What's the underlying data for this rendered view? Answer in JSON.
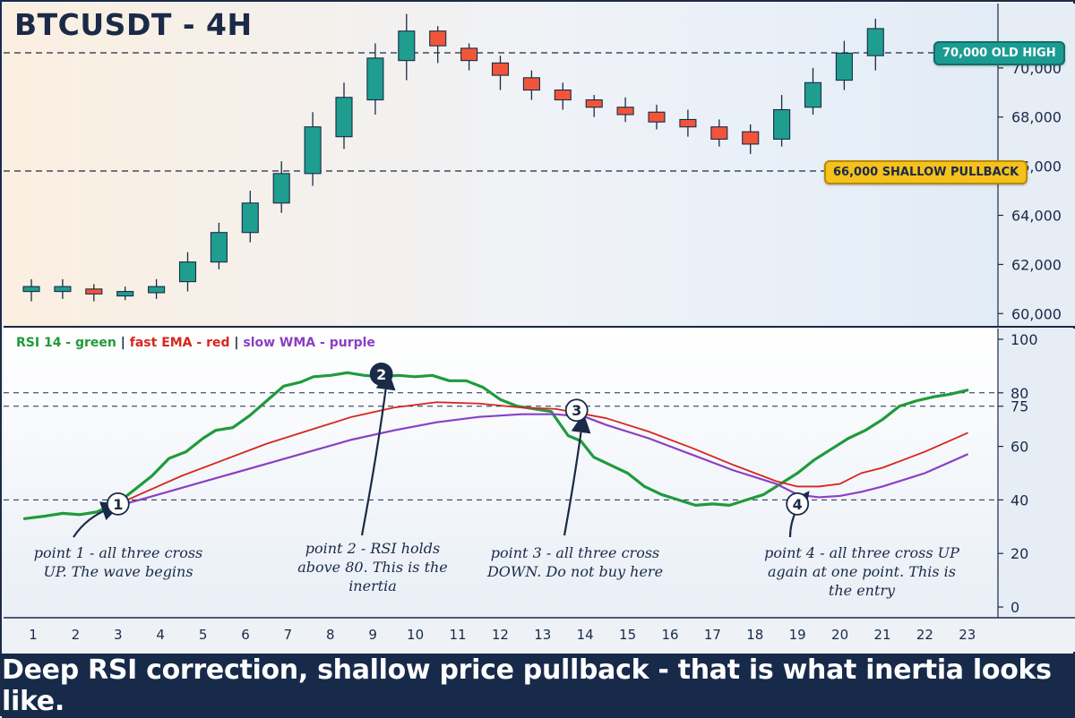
{
  "title": "BTCUSDT - 4H",
  "banner": "Deep RSI correction, shallow price pullback - that is what inertia looks like.",
  "colors": {
    "bull": "#1f9e8f",
    "bear": "#f0553a",
    "rsi": "#1f9b3c",
    "ema": "#d7261e",
    "wma": "#8b3fc4",
    "high_badge": "#1b9c92",
    "pullback_badge": "#f6c11c",
    "banner_bg": "#172a4a"
  },
  "legend": {
    "rsi": "RSI 14 - green",
    "sep1": "|",
    "ema": "fast EMA - red",
    "sep2": "|",
    "wma": "slow WMA - purple"
  },
  "levels": {
    "high_label": "70,000 OLD HIGH",
    "pullback_label": "66,000 SHALLOW PULLBACK"
  },
  "notes": [
    {
      "marker": "1",
      "text": "point 1 - all three cross UP. The wave begins"
    },
    {
      "marker": "2",
      "text": "point 2 - RSI holds above 80. This is the inertia"
    },
    {
      "marker": "3",
      "text": "point 3 - all three cross DOWN. Do not buy here"
    },
    {
      "marker": "4",
      "text": "point 4 - all three cross UP again at one point. This is the entry"
    }
  ],
  "chart_data": [
    {
      "type": "candlestick",
      "title": "BTCUSDT - 4H",
      "ylim": [
        59500,
        72400
      ],
      "y_ticks": [
        60000,
        62000,
        64000,
        66000,
        68000,
        70000
      ],
      "y_tick_labels": [
        "60,000",
        "62,000",
        "64,000",
        "66,000",
        "68,000",
        "70,000"
      ],
      "reference_lines": [
        70200,
        66400
      ],
      "candles": [
        {
          "x": 1,
          "open": 60900,
          "close": 61100,
          "high": 61400,
          "low": 60500
        },
        {
          "x": 2,
          "open": 60900,
          "close": 61100,
          "high": 61400,
          "low": 60600
        },
        {
          "x": 3,
          "open": 61000,
          "close": 60800,
          "high": 61200,
          "low": 60500
        },
        {
          "x": 4,
          "open": 60750,
          "close": 60900,
          "high": 61100,
          "low": 60550
        },
        {
          "x": 5,
          "open": 60850,
          "close": 61100,
          "high": 61400,
          "low": 60600
        },
        {
          "x": 6,
          "open": 61300,
          "close": 62100,
          "high": 62500,
          "low": 60900
        },
        {
          "x": 7,
          "open": 62100,
          "close": 63300,
          "high": 63700,
          "low": 61800
        },
        {
          "x": 8,
          "open": 63300,
          "close": 64500,
          "high": 65000,
          "low": 62900
        },
        {
          "x": 9,
          "open": 64500,
          "close": 65700,
          "high": 66200,
          "low": 64100
        },
        {
          "x": 10,
          "open": 65700,
          "close": 67600,
          "high": 68200,
          "low": 65200
        },
        {
          "x": 11,
          "open": 67200,
          "close": 68800,
          "high": 69400,
          "low": 66700
        },
        {
          "x": 12,
          "open": 68700,
          "close": 70400,
          "high": 71000,
          "low": 68100
        },
        {
          "x": 13,
          "open": 70300,
          "close": 71500,
          "high": 72200,
          "low": 69500
        },
        {
          "x": 14,
          "open": 71500,
          "close": 70900,
          "high": 71700,
          "low": 70200
        },
        {
          "x": 15,
          "open": 70800,
          "close": 70300,
          "high": 71000,
          "low": 69900
        },
        {
          "x": 16,
          "open": 70200,
          "close": 69700,
          "high": 70500,
          "low": 69100
        },
        {
          "x": 17,
          "open": 69600,
          "close": 69100,
          "high": 69900,
          "low": 68700
        },
        {
          "x": 18,
          "open": 69100,
          "close": 68700,
          "high": 69400,
          "low": 68300
        },
        {
          "x": 19,
          "open": 68700,
          "close": 68400,
          "high": 68900,
          "low": 68000
        },
        {
          "x": 20,
          "open": 68400,
          "close": 68100,
          "high": 68800,
          "low": 67800
        },
        {
          "x": 21,
          "open": 68200,
          "close": 67800,
          "high": 68500,
          "low": 67500
        },
        {
          "x": 22,
          "open": 67900,
          "close": 67600,
          "high": 68300,
          "low": 67200
        },
        {
          "x": 23,
          "open": 67600,
          "close": 67100,
          "high": 67900,
          "low": 66800
        },
        {
          "x": 24,
          "open": 67400,
          "close": 66900,
          "high": 67700,
          "low": 66500
        },
        {
          "x": 25,
          "open": 67100,
          "close": 68300,
          "high": 68900,
          "low": 66800
        },
        {
          "x": 26,
          "open": 68400,
          "close": 69400,
          "high": 70000,
          "low": 68100
        },
        {
          "x": 27,
          "open": 69500,
          "close": 70600,
          "high": 71100,
          "low": 69100
        },
        {
          "x": 28,
          "open": 70500,
          "close": 71600,
          "high": 72000,
          "low": 69900
        }
      ]
    },
    {
      "type": "line",
      "title": "",
      "xlim": [
        0.8,
        24
      ],
      "ylim": [
        -4,
        104
      ],
      "x_ticks": [
        1,
        2,
        3,
        4,
        5,
        6,
        7,
        8,
        9,
        10,
        11,
        12,
        13,
        14,
        15,
        16,
        17,
        18,
        19,
        20,
        21,
        22,
        23
      ],
      "y_ticks": [
        0,
        20,
        40,
        60,
        75,
        80,
        100
      ],
      "y_tick_labels": [
        "0",
        "20",
        "40",
        "60",
        "75",
        "80",
        "100"
      ],
      "reference_lines": [
        40,
        75,
        80
      ],
      "series": [
        {
          "name": "RSI 14",
          "x": [
            0.8,
            1.3,
            1.7,
            2.1,
            2.5,
            3.0,
            3.4,
            3.8,
            4.2,
            4.6,
            5.0,
            5.3,
            5.7,
            6.1,
            6.5,
            6.9,
            7.3,
            7.6,
            8.0,
            8.4,
            8.8,
            9.2,
            9.6,
            10.0,
            10.4,
            10.8,
            11.2,
            11.6,
            12.0,
            12.4,
            12.8,
            13.2,
            13.6,
            13.9,
            14.2,
            14.6,
            15.0,
            15.4,
            15.8,
            16.2,
            16.6,
            17.0,
            17.4,
            17.8,
            18.2,
            18.6,
            19.0,
            19.4,
            19.8,
            20.2,
            20.6,
            21.0,
            21.4,
            21.8,
            22.2,
            22.6,
            23.0
          ],
          "values": [
            33,
            34,
            35,
            34.5,
            35.5,
            39,
            44,
            49,
            55.5,
            58,
            63,
            66,
            67,
            71.5,
            77,
            82.5,
            84,
            86,
            86.5,
            87.5,
            86.5,
            86,
            86.5,
            86,
            86.5,
            84.5,
            84.5,
            82,
            77.5,
            75,
            74,
            73,
            64,
            62,
            56,
            53,
            50,
            45,
            42,
            40,
            38,
            38.5,
            38,
            40,
            42,
            46,
            50,
            55,
            59,
            63,
            66,
            70,
            75,
            77,
            78.5,
            79.5,
            81
          ]
        },
        {
          "name": "fast EMA",
          "x": [
            2.8,
            3.5,
            4.5,
            5.5,
            6.5,
            7.5,
            8.5,
            9.5,
            10.5,
            11.5,
            12.5,
            13.3,
            14.0,
            14.5,
            15.5,
            16.5,
            17.5,
            18.5,
            19.0,
            19.5,
            20.0,
            20.5,
            21.0,
            22.0,
            23.0
          ],
          "values": [
            37,
            42,
            49,
            55,
            61,
            66,
            71,
            74.5,
            76.5,
            76,
            74.5,
            74,
            72,
            70.5,
            65.5,
            59.5,
            53,
            47,
            45,
            45,
            46,
            50,
            52,
            58,
            65
          ]
        },
        {
          "name": "slow WMA",
          "x": [
            2.8,
            3.5,
            4.5,
            5.5,
            6.5,
            7.5,
            8.5,
            9.5,
            10.5,
            11.5,
            12.5,
            13.3,
            14.0,
            14.5,
            15.5,
            16.5,
            17.5,
            18.5,
            19.0,
            19.5,
            20.0,
            20.5,
            21.0,
            22.0,
            23.0
          ],
          "values": [
            37,
            40,
            44.5,
            49,
            53.5,
            58,
            62.5,
            66,
            69,
            71,
            72,
            72,
            71,
            68,
            63,
            57,
            51,
            46,
            42,
            41,
            41.5,
            43,
            45,
            50,
            57
          ]
        }
      ],
      "markers": [
        {
          "label": "1",
          "x": 3.0,
          "y": 38.5,
          "color": "#ffffff"
        },
        {
          "label": "2",
          "x": 9.2,
          "y": 87,
          "color": "#1a2a48"
        },
        {
          "label": "3",
          "x": 13.8,
          "y": 73.5,
          "color": "#ffffff"
        },
        {
          "label": "4",
          "x": 19.0,
          "y": 38.5,
          "color": "#ffffff"
        }
      ]
    }
  ]
}
